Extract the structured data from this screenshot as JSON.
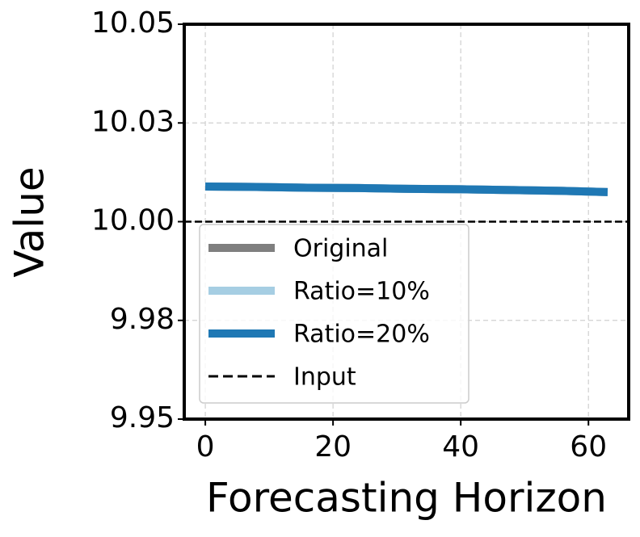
{
  "chart_data": {
    "type": "line",
    "xlabel": "Forecasting Horizon",
    "ylabel": "Value",
    "x": [
      0,
      8,
      16,
      24,
      32,
      40,
      48,
      56,
      63
    ],
    "series": [
      {
        "name": "Original",
        "color": "#7f7f7f",
        "values": [
          10.0089,
          10.0088,
          10.0086,
          10.0085,
          10.0083,
          10.0082,
          10.008,
          10.0078,
          10.0075
        ]
      },
      {
        "name": "Ratio=10%",
        "color": "#a6cee3",
        "values": [
          10.0089,
          10.0088,
          10.0086,
          10.0085,
          10.0083,
          10.0082,
          10.008,
          10.0078,
          10.0075
        ]
      },
      {
        "name": "Ratio=20%",
        "color": "#1f78b4",
        "values": [
          10.0089,
          10.0088,
          10.0086,
          10.0085,
          10.0083,
          10.0082,
          10.008,
          10.0078,
          10.0075
        ]
      }
    ],
    "hline": {
      "name": "Input",
      "y": 10,
      "color": "#000000",
      "style": "dashed"
    },
    "xlim": [
      -3.3,
      66.3
    ],
    "ylim": [
      9.95,
      10.05
    ],
    "xticks": [
      0,
      20,
      40,
      60
    ],
    "yticks": [
      9.95,
      {
        "value": 9.975,
        "label": "9.98"
      },
      {
        "value": 10,
        "label": "10.00"
      },
      {
        "value": 10.025,
        "label": "10.03"
      },
      10.05
    ],
    "grid": true,
    "legend": "lower left"
  }
}
